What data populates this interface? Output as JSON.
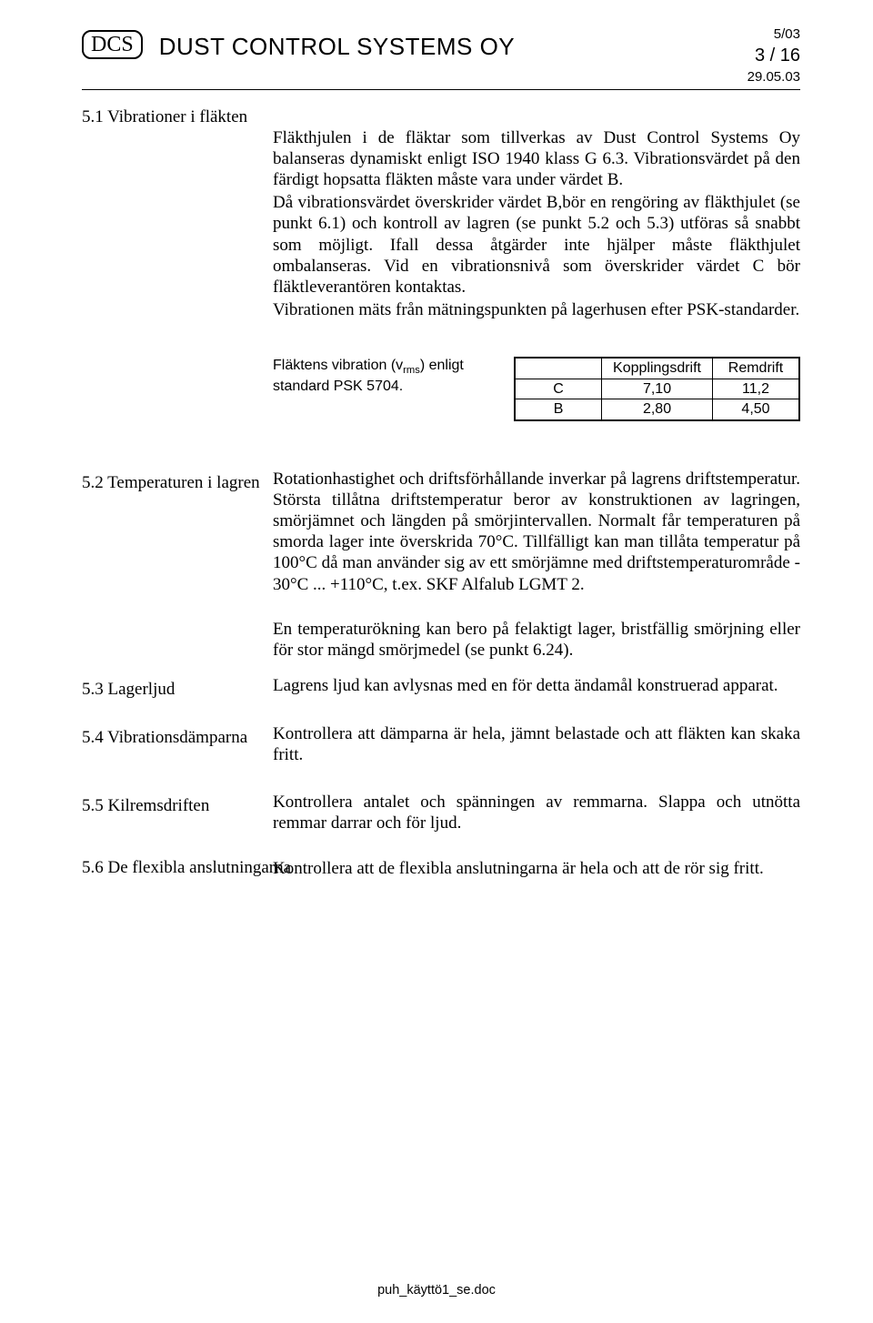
{
  "header": {
    "logo_text": "DCS",
    "company_name": "DUST CONTROL SYSTEMS OY",
    "doc_code": "5/03",
    "page_label": "3 / 16",
    "date": "29.05.03"
  },
  "section_5_1": {
    "title": "5.1 Vibrationer i fläkten",
    "p1": "Fläkthjulen i de fläktar som tillverkas av Dust Control Systems Oy balanseras dynamiskt enligt ISO 1940 klass G 6.3. Vibrationsvärdet på den färdigt hopsatta fläkten måste vara under värdet B.",
    "p2": "Då vibrationsvärdet överskrider värdet B,bör en rengöring av fläkthjulet (se punkt 6.1) och kontroll av lagren (se punkt 5.2 och 5.3) utföras så snabbt som möjligt. Ifall dessa åtgärder inte hjälper måste fläkthjulet ombalanseras. Vid en vibrationsnivå som överskrider värdet C bör fläktleverantören kontaktas.",
    "p3": "Vibrationen mäts från mätningspunkten på lagerhusen efter PSK-standarder."
  },
  "vib_table": {
    "caption_prefix": "Fläktens vibration (v",
    "caption_sub": "rms",
    "caption_suffix": ") enligt standard PSK 5704.",
    "col1": "Kopplingsdrift",
    "col2": "Remdrift",
    "rows": [
      {
        "label": "C",
        "v1": "7,10",
        "v2": "11,2"
      },
      {
        "label": "B",
        "v1": "2,80",
        "v2": "4,50"
      }
    ]
  },
  "section_5_2": {
    "title": "5.2 Temperaturen i lagren",
    "p1": "Rotationhastighet och driftsförhållande inverkar på lagrens driftstemperatur. Största tillåtna driftstemperatur beror av konstruktionen av lagringen, smörjämnet och längden på smörjintervallen. Normalt får temperaturen på smorda lager inte överskrida 70°C. Tillfälligt kan man tillåta temperatur på 100°C då man använder sig av ett smörjämne med driftstemperaturområde - 30°C ... +110°C, t.ex. SKF Alfalub LGMT 2.",
    "p2": "En temperaturökning kan bero på felaktigt lager, bristfällig smörjning eller för stor mängd smörjmedel (se punkt 6.24)."
  },
  "section_5_3": {
    "title": "5.3 Lagerljud",
    "p1": "Lagrens ljud kan avlysnas med en för detta ändamål konstruerad apparat."
  },
  "section_5_4": {
    "title": "5.4 Vibrationsdämparna",
    "p1": "Kontrollera att dämparna är hela, jämnt belastade och att fläkten kan skaka fritt."
  },
  "section_5_5": {
    "title": "5.5 Kilremsdriften",
    "p1": "Kontrollera antalet och spänningen av remmarna. Slappa och utnötta remmar darrar och för ljud."
  },
  "section_5_6": {
    "title": "5.6 De flexibla anslutningarna",
    "p1": "Kontrollera att de flexibla anslutningarna är hela och att de rör sig fritt."
  },
  "footer": {
    "filename": "puh_käyttö1_se.doc"
  }
}
